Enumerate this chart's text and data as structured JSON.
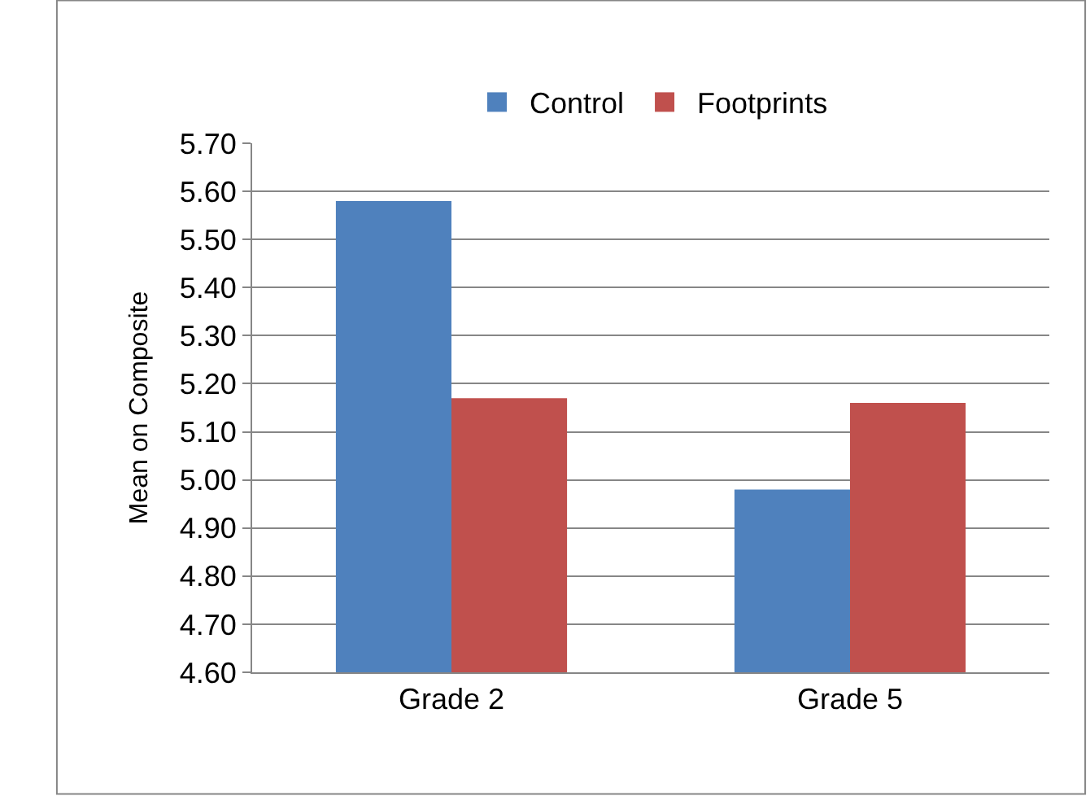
{
  "chart_data": {
    "type": "bar",
    "ylabel": "Mean on Composite",
    "categories": [
      "Grade 2",
      "Grade 5"
    ],
    "series": [
      {
        "name": "Control",
        "color": "#4f81bd",
        "values": [
          5.58,
          4.98
        ]
      },
      {
        "name": "Footprints",
        "color": "#c0504d",
        "values": [
          5.17,
          5.16
        ]
      }
    ],
    "ylim": [
      4.6,
      5.7
    ],
    "yticks": [
      {
        "value": 4.6,
        "label": "4.60"
      },
      {
        "value": 4.7,
        "label": "4.70"
      },
      {
        "value": 4.8,
        "label": "4.80"
      },
      {
        "value": 4.9,
        "label": "4.90"
      },
      {
        "value": 5.0,
        "label": "5.00"
      },
      {
        "value": 5.1,
        "label": "5.10"
      },
      {
        "value": 5.2,
        "label": "5.20"
      },
      {
        "value": 5.3,
        "label": "5.30"
      },
      {
        "value": 5.4,
        "label": "5.40"
      },
      {
        "value": 5.5,
        "label": "5.50"
      },
      {
        "value": 5.6,
        "label": "5.60"
      },
      {
        "value": 5.7,
        "label": "5.70"
      }
    ],
    "grid": "y",
    "legend": "top"
  }
}
